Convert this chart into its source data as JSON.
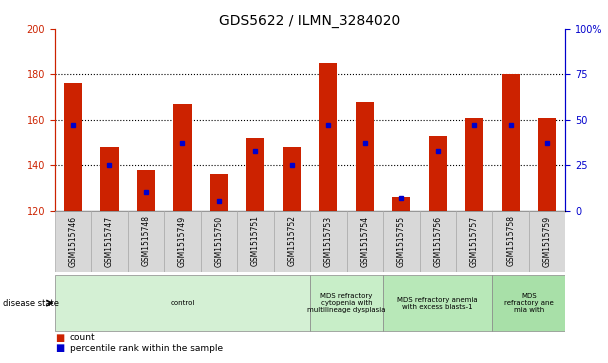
{
  "title": "GDS5622 / ILMN_3284020",
  "samples": [
    "GSM1515746",
    "GSM1515747",
    "GSM1515748",
    "GSM1515749",
    "GSM1515750",
    "GSM1515751",
    "GSM1515752",
    "GSM1515753",
    "GSM1515754",
    "GSM1515755",
    "GSM1515756",
    "GSM1515757",
    "GSM1515758",
    "GSM1515759"
  ],
  "counts": [
    176,
    148,
    138,
    167,
    136,
    152,
    148,
    185,
    168,
    126,
    153,
    161,
    180,
    161
  ],
  "percentiles": [
    47,
    25,
    10,
    37,
    5,
    33,
    25,
    47,
    37,
    7,
    33,
    47,
    47,
    37
  ],
  "ylim_left": [
    120,
    200
  ],
  "ylim_right": [
    0,
    100
  ],
  "yticks_left": [
    120,
    140,
    160,
    180,
    200
  ],
  "yticks_right": [
    0,
    25,
    50,
    75,
    100
  ],
  "bar_color": "#cc2200",
  "dot_color": "#0000cc",
  "bg_color": "#ffffff",
  "disease_groups": [
    {
      "label": "control",
      "start": 0,
      "end": 7,
      "color": "#d4f0d4"
    },
    {
      "label": "MDS refractory\ncytopenia with\nmultilineage dysplasia",
      "start": 7,
      "end": 9,
      "color": "#c8eec8"
    },
    {
      "label": "MDS refractory anemia\nwith excess blasts-1",
      "start": 9,
      "end": 12,
      "color": "#b8e8b8"
    },
    {
      "label": "MDS\nrefractory ane\nmia with",
      "start": 12,
      "end": 14,
      "color": "#a8e0a8"
    }
  ],
  "legend_count_label": "count",
  "legend_pct_label": "percentile rank within the sample",
  "disease_state_label": "disease state",
  "left_axis_color": "#cc2200",
  "right_axis_color": "#0000cc",
  "title_fontsize": 10,
  "tick_fontsize": 7,
  "bar_width": 0.5
}
